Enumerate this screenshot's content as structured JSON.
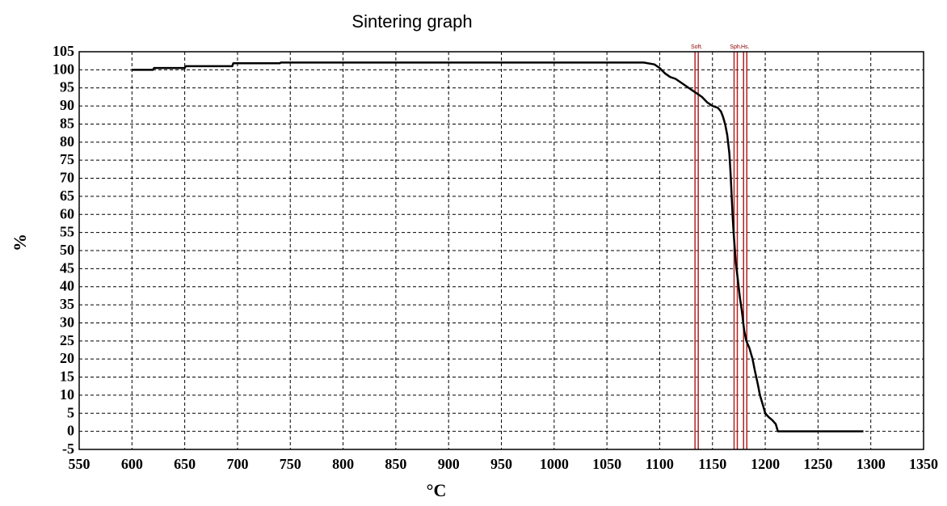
{
  "chart_data": {
    "type": "line",
    "title": "Sintering graph",
    "xlabel": "°C",
    "ylabel": "%",
    "xlim": [
      550,
      1350
    ],
    "ylim": [
      -5,
      105
    ],
    "x_ticks": [
      550,
      600,
      650,
      700,
      750,
      800,
      850,
      900,
      950,
      1000,
      1050,
      1100,
      1150,
      1200,
      1250,
      1300,
      1350
    ],
    "y_ticks": [
      -5,
      0,
      5,
      10,
      15,
      20,
      25,
      30,
      35,
      40,
      45,
      50,
      55,
      60,
      65,
      70,
      75,
      80,
      85,
      90,
      95,
      100,
      105
    ],
    "grid": true,
    "series": [
      {
        "color": "#000000",
        "x": [
          600,
          620,
          621,
          650,
          651,
          695,
          696,
          740,
          741,
          1085,
          1095,
          1100,
          1105,
          1110,
          1115,
          1120,
          1125,
          1130,
          1135,
          1140,
          1145,
          1150,
          1155,
          1158,
          1160,
          1162,
          1164,
          1166,
          1167,
          1168,
          1169,
          1170,
          1172,
          1174,
          1176,
          1178,
          1180,
          1182,
          1185,
          1188,
          1190,
          1193,
          1195,
          1198,
          1200,
          1203,
          1207,
          1210,
          1212,
          1230,
          1260,
          1293
        ],
        "y": [
          100,
          100,
          100.5,
          100.5,
          101,
          101,
          101.8,
          101.8,
          102,
          102,
          101.5,
          100.5,
          99,
          98,
          97.5,
          96.5,
          95.5,
          94.5,
          93.5,
          92.5,
          91,
          90,
          89.5,
          88.5,
          87,
          85,
          82,
          77,
          72,
          66,
          60,
          55,
          47,
          42,
          37,
          33,
          28,
          25,
          23,
          20,
          17,
          13,
          10,
          7,
          5,
          4,
          3,
          2,
          0,
          0,
          0,
          0
        ]
      }
    ],
    "markers": [
      {
        "label": "Soft.",
        "x": 1135,
        "color": "#b22222"
      },
      {
        "label": "Sph.",
        "x": 1172,
        "color": "#b22222"
      },
      {
        "label": "Hs.",
        "x": 1181,
        "color": "#b22222"
      }
    ]
  }
}
